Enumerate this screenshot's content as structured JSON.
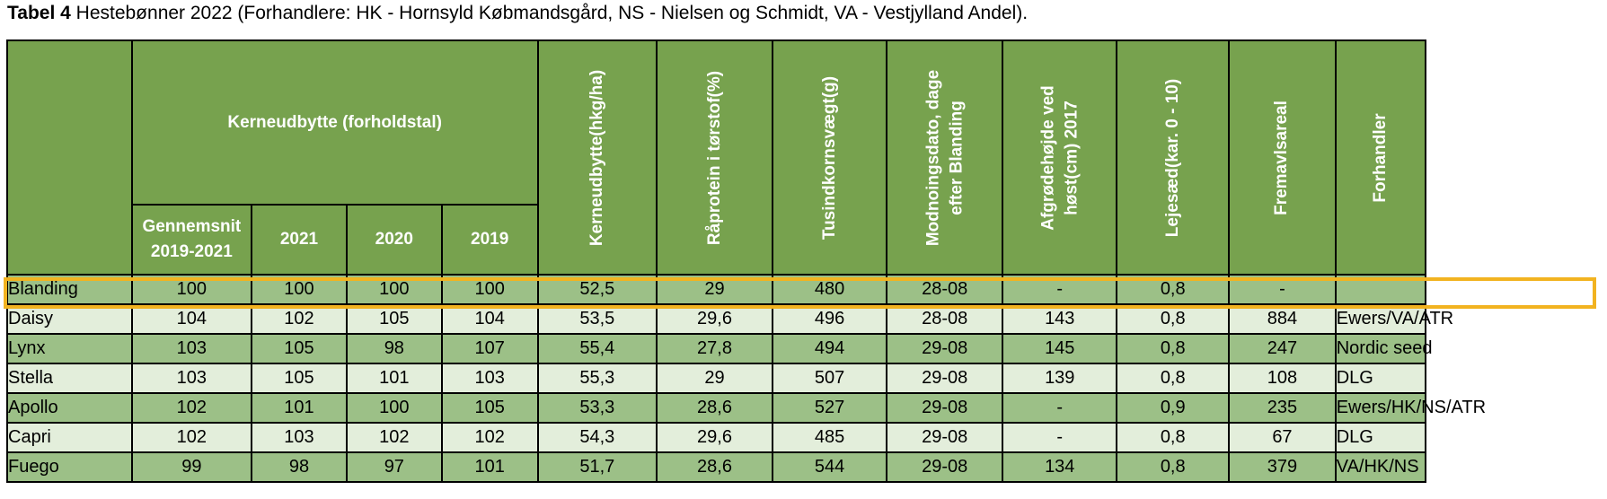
{
  "caption": {
    "label": "Tabel 4",
    "text": " Hestebønner 2022 (Forhandlere: HK - Hornsyld Købmandsgård, NS - Nielsen og Schmidt, VA - Vestjylland Andel)."
  },
  "table": {
    "group_header": "Kerneudbytte (forholdstal)",
    "sub_headers": {
      "avg_line1": "Gennemsnit",
      "avg_line2": "2019-2021",
      "y2021": "2021",
      "y2020": "2020",
      "y2019": "2019"
    },
    "col_headers": {
      "yield": "Kerneudbytte(hkg/ha)",
      "protein": "Råprotein i tørstof(%)",
      "tkw": "Tusindkornsvægt(g)",
      "maturity_line1": "Modnoingsdato, dage",
      "maturity_line2": "efter Blanding",
      "height_line1": "Afgrødehøjde ved",
      "height_line2": "høst(cm)  2017",
      "lodging": "Lejesæd(kar. 0 - 10)",
      "area": "Fremavlsareal",
      "dealer": "Forhandler"
    },
    "rows": [
      {
        "name": "Blanding",
        "avg": "100",
        "y2021": "100",
        "y2020": "100",
        "y2019": "100",
        "yield": "52,5",
        "protein": "29",
        "tkw": "480",
        "maturity": "28-08",
        "height": "-",
        "lodging": "0,8",
        "area": "-",
        "dealer": ""
      },
      {
        "name": "Daisy",
        "avg": "104",
        "y2021": "102",
        "y2020": "105",
        "y2019": "104",
        "yield": "53,5",
        "protein": "29,6",
        "tkw": "496",
        "maturity": "28-08",
        "height": "143",
        "lodging": "0,8",
        "area": "884",
        "dealer": "Ewers/VA/ATR"
      },
      {
        "name": "Lynx",
        "avg": "103",
        "y2021": "105",
        "y2020": "98",
        "y2019": "107",
        "yield": "55,4",
        "protein": "27,8",
        "tkw": "494",
        "maturity": "29-08",
        "height": "145",
        "lodging": "0,8",
        "area": "247",
        "dealer": "Nordic seed"
      },
      {
        "name": "Stella",
        "avg": "103",
        "y2021": "105",
        "y2020": "101",
        "y2019": "103",
        "yield": "55,3",
        "protein": "29",
        "tkw": "507",
        "maturity": "29-08",
        "height": "139",
        "lodging": "0,8",
        "area": "108",
        "dealer": "DLG"
      },
      {
        "name": "Apollo",
        "avg": "102",
        "y2021": "101",
        "y2020": "100",
        "y2019": "105",
        "yield": "53,3",
        "protein": "28,6",
        "tkw": "527",
        "maturity": "29-08",
        "height": "-",
        "lodging": "0,9",
        "area": "235",
        "dealer": "Ewers/HK/NS/ATR"
      },
      {
        "name": "Capri",
        "avg": "102",
        "y2021": "103",
        "y2020": "102",
        "y2019": "102",
        "yield": "54,3",
        "protein": "29,6",
        "tkw": "485",
        "maturity": "29-08",
        "height": "-",
        "lodging": "0,8",
        "area": "67",
        "dealer": "DLG"
      },
      {
        "name": "Fuego",
        "avg": "99",
        "y2021": "98",
        "y2020": "97",
        "y2019": "101",
        "yield": "51,7",
        "protein": "28,6",
        "tkw": "544",
        "maturity": "29-08",
        "height": "134",
        "lodging": "0,8",
        "area": "379",
        "dealer": "VA/HK/NS"
      }
    ]
  },
  "colors": {
    "header_bg": "#77a24e",
    "row_dark": "#9cc087",
    "row_light": "#e3eedb",
    "highlight_border": "#f2b320"
  }
}
